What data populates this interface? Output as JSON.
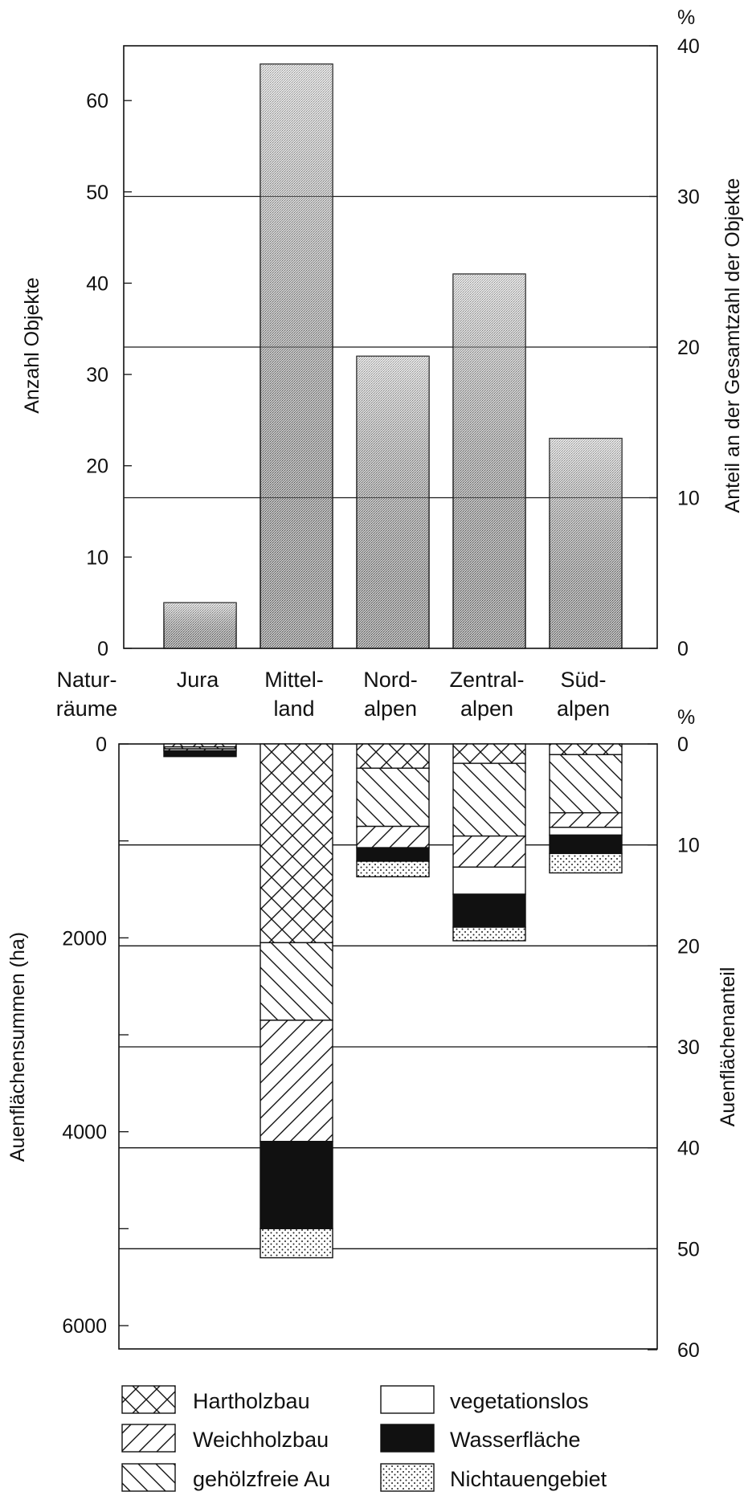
{
  "chart_data": [
    {
      "type": "bar",
      "categories": [
        "Jura",
        "Mittel-\nland",
        "Nord-\nalpen",
        "Zentral-\nalpen",
        "Süd-\nalpen"
      ],
      "values": [
        5,
        64,
        32,
        41,
        23
      ],
      "ylabel": "Anzahl Objekte",
      "ylabel_right": "Anteil an der Gesamtzahl der Objekte",
      "right_unit": "%",
      "ylim": [
        0,
        66
      ],
      "yticks": [
        0,
        10,
        20,
        30,
        40,
        50,
        60
      ],
      "yticks_right": [
        0,
        10,
        20,
        30,
        40
      ],
      "ylim_right": [
        0,
        40
      ],
      "grid": "horizontal at 10, 20, 30 %",
      "fill": "stippled"
    },
    {
      "type": "bar",
      "stacked": true,
      "orientation": "downward",
      "categories": [
        "Jura",
        "Mittel-\nland",
        "Nord-\nalpen",
        "Zentral-\nalpen",
        "Süd-\nalpen"
      ],
      "row_label": "Natur-\nräume",
      "ylabel": "Auenflächensummen (ha)",
      "ylabel_right": "Auenflächenanteil",
      "right_unit": "%",
      "ylim": [
        0,
        6200
      ],
      "yticks": [
        0,
        2000,
        4000,
        6000
      ],
      "yticks_right": [
        0,
        10,
        20,
        30,
        40,
        50,
        60
      ],
      "ylim_right": [
        0,
        60
      ],
      "series": [
        {
          "name": "Hartholzbau",
          "pattern": "crosshatch",
          "values": [
            30,
            2050,
            250,
            200,
            110
          ]
        },
        {
          "name": "gehölzfreie Au",
          "pattern": "backslash",
          "values": [
            20,
            800,
            600,
            750,
            600
          ]
        },
        {
          "name": "Weichholzbau",
          "pattern": "slash",
          "values": [
            20,
            1250,
            220,
            320,
            150
          ]
        },
        {
          "name": "vegetationslos",
          "pattern": "white",
          "values": [
            0,
            0,
            0,
            280,
            80
          ]
        },
        {
          "name": "Wasserfläche",
          "pattern": "black",
          "values": [
            60,
            900,
            140,
            340,
            190
          ]
        },
        {
          "name": "Nichtauengebiet",
          "pattern": "dots",
          "values": [
            0,
            300,
            160,
            140,
            200
          ]
        }
      ]
    }
  ],
  "legend": {
    "items": [
      {
        "label": "Hartholzbau",
        "pattern": "crosshatch"
      },
      {
        "label": "Weichholzbau",
        "pattern": "slash"
      },
      {
        "label": "gehölzfreie Au",
        "pattern": "backslash"
      },
      {
        "label": "vegetationslos",
        "pattern": "white"
      },
      {
        "label": "Wasserfläche",
        "pattern": "black"
      },
      {
        "label": "Nichtauengebiet",
        "pattern": "dots"
      }
    ]
  },
  "colors": {
    "ink": "#111111",
    "stipple_light": "#d4d4d4",
    "stipple_dark": "#9a9a9a"
  }
}
